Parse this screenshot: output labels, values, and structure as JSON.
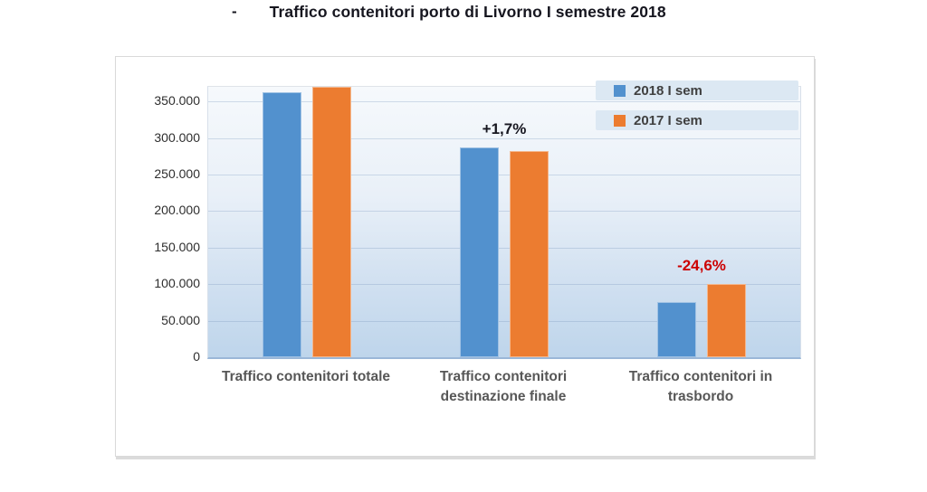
{
  "title": {
    "dash": "-",
    "text": "Traffico contenitori porto di Livorno I semestre 2018"
  },
  "colors": {
    "series_2018": "#5291CE",
    "series_2017": "#EC7C30",
    "annotation_positive": "#16161f",
    "annotation_negative": "#CC0000",
    "title_text": "#16161f",
    "axis_text": "#2e2e2e",
    "category_text": "#575757"
  },
  "chart_data": {
    "type": "bar",
    "title": "Traffico contenitori porto di Livorno I semestre 2018",
    "categories": [
      "Traffico contenitori totale",
      "Traffico contenitori destinazione finale",
      "Traffico contenitori in trasbordo"
    ],
    "series": [
      {
        "name": "2018 I sem",
        "color": "#5291CE",
        "values": [
          363000,
          287000,
          75400
        ]
      },
      {
        "name": "2017 I sem",
        "color": "#EC7C30",
        "values": [
          370000,
          282000,
          100000
        ]
      }
    ],
    "xlabel": "",
    "ylabel": "",
    "ylim": [
      0,
      370000
    ],
    "yticks": [
      {
        "value": 0,
        "label": "0"
      },
      {
        "value": 50000,
        "label": "50.000"
      },
      {
        "value": 100000,
        "label": "100.000"
      },
      {
        "value": 150000,
        "label": "150.000"
      },
      {
        "value": 200000,
        "label": "200.000"
      },
      {
        "value": 250000,
        "label": "250.000"
      },
      {
        "value": 300000,
        "label": "300.000"
      },
      {
        "value": 350000,
        "label": "350.000"
      }
    ],
    "grid": true,
    "legend_position": "top-right",
    "annotations": [
      {
        "text": "+1,7%",
        "category_index": 1,
        "color": "#16161f"
      },
      {
        "text": "-24,6%",
        "category_index": 2,
        "color": "#CC0000"
      }
    ]
  }
}
